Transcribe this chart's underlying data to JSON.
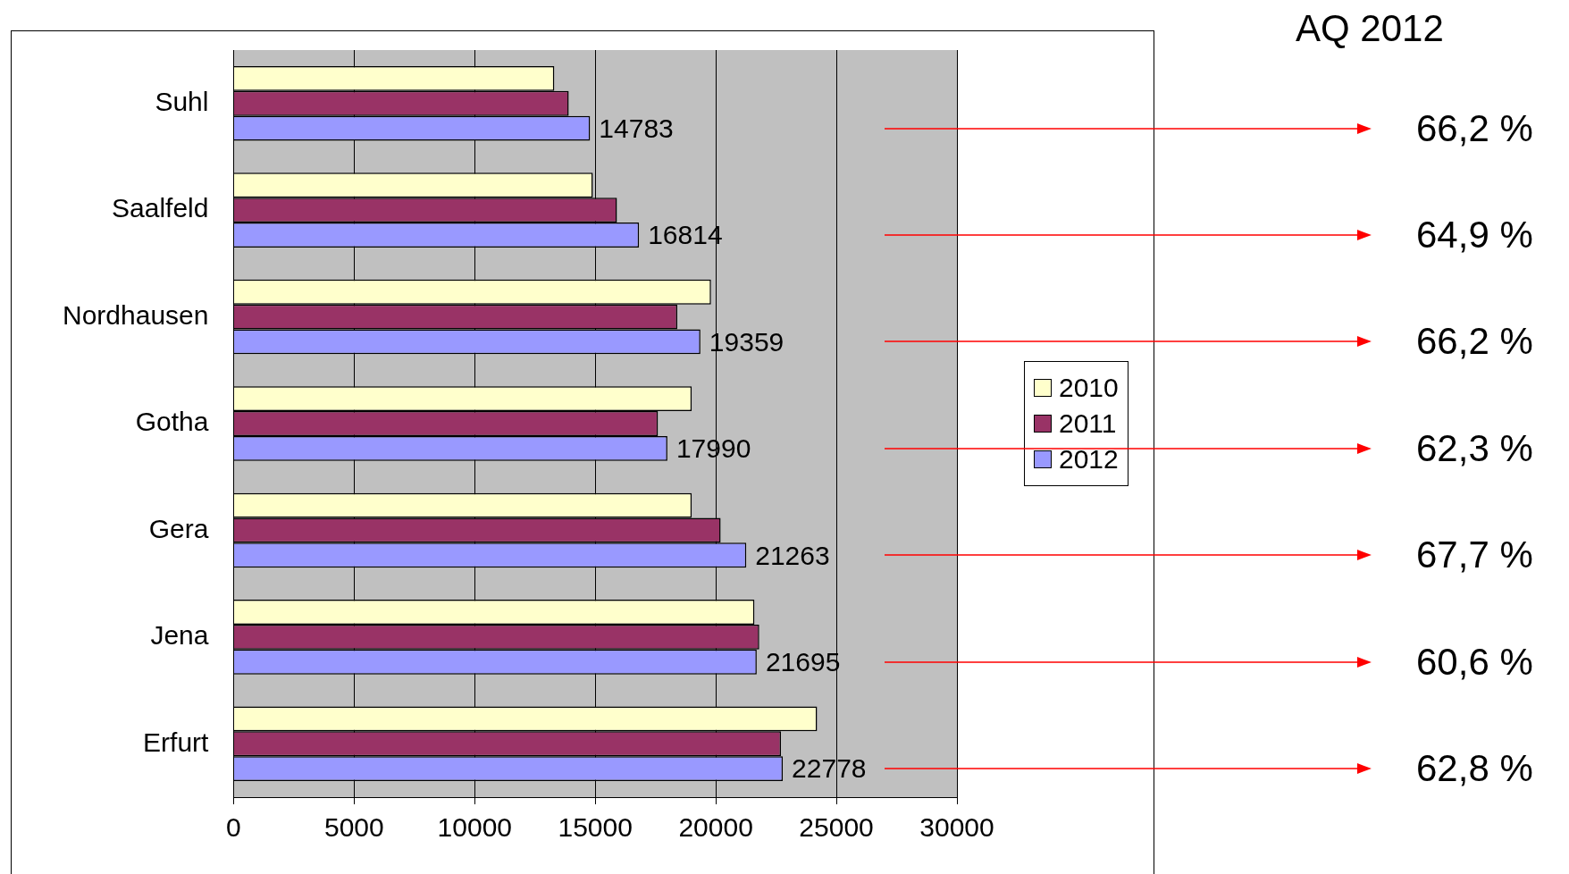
{
  "chart_data": {
    "type": "bar",
    "orientation": "horizontal",
    "categories": [
      "Suhl",
      "Saalfeld",
      "Nordhausen",
      "Gotha",
      "Gera",
      "Jena",
      "Erfurt"
    ],
    "series": [
      {
        "name": "2010",
        "color": "#ffffcc",
        "values": [
          13300,
          14900,
          19800,
          19000,
          19000,
          21600,
          24200
        ]
      },
      {
        "name": "2011",
        "color": "#993366",
        "values": [
          13900,
          15900,
          18400,
          17600,
          20200,
          21800,
          22700
        ]
      },
      {
        "name": "2012",
        "color": "#9999ff",
        "values": [
          14783,
          16814,
          19359,
          17990,
          21263,
          21695,
          22778
        ],
        "value_labels": [
          "14783",
          "16814",
          "19359",
          "17990",
          "21263",
          "21695",
          "22778"
        ]
      }
    ],
    "xlim": [
      0,
      30000
    ],
    "xticks": [
      0,
      5000,
      10000,
      15000,
      20000,
      25000,
      30000
    ],
    "grid": "x",
    "legend": "right",
    "annotations": [
      "AQ 2012",
      "66,2 %",
      "64,9 %",
      "66,2 %",
      "62,3 %",
      "67,7 %",
      "60,6 %",
      "62,8 %"
    ]
  }
}
